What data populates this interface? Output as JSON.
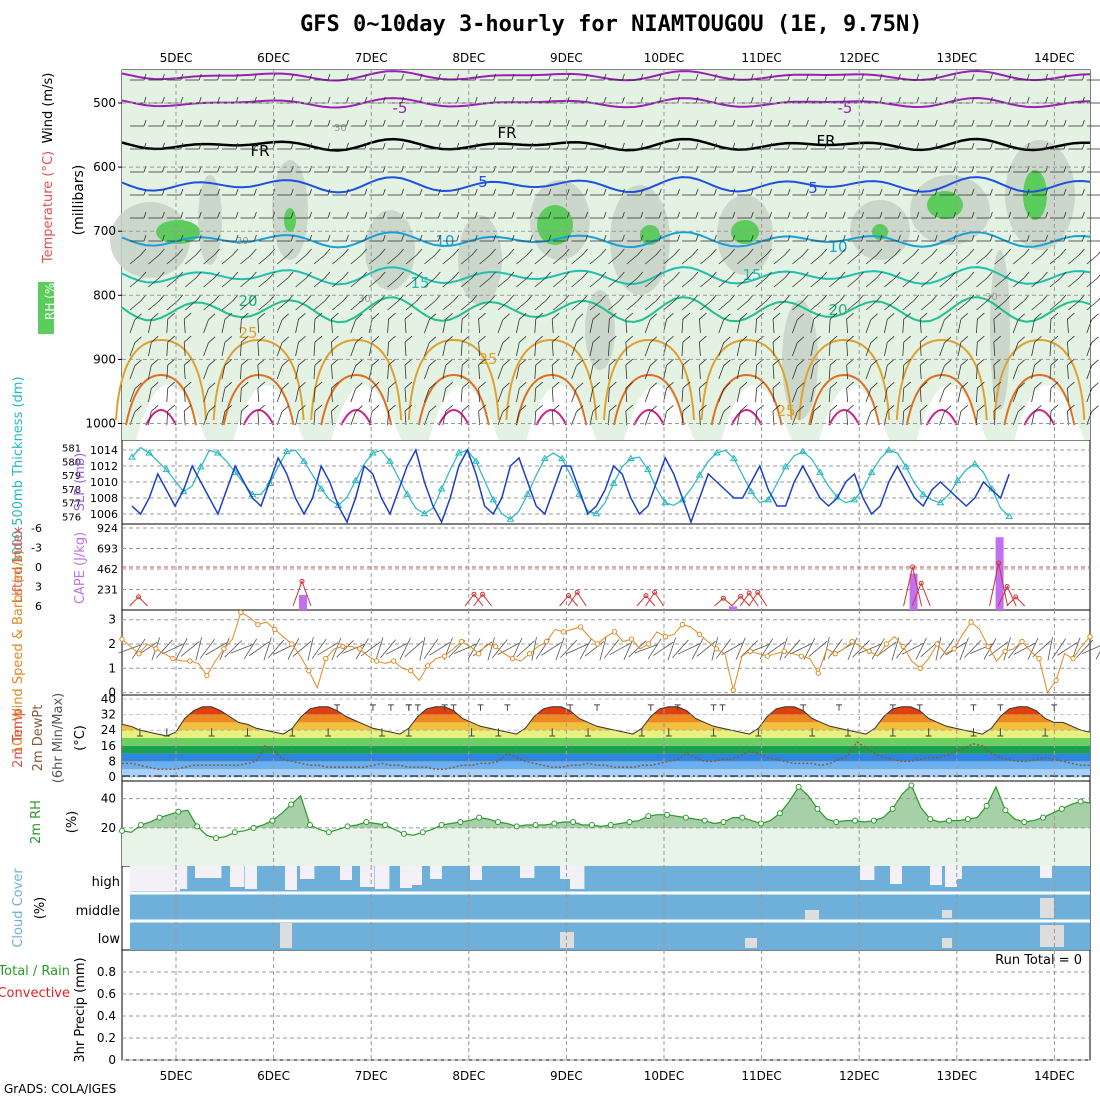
{
  "title": "GFS 0~10day 3-hourly for NIAMTOUGOU (1E, 9.75N)",
  "credit": "GrADS: COLA/IGES",
  "date_labels": [
    "5DEC",
    "6DEC",
    "7DEC",
    "8DEC",
    "9DEC",
    "10DEC",
    "11DEC",
    "12DEC",
    "13DEC",
    "14DEC"
  ],
  "colors": {
    "rh_green": "#5ccc5c",
    "rh_light": "#e4f2e4",
    "temp_purple": "#9a1fb5",
    "temp_blue": "#1d4fe0",
    "temp_cyan": "#1aa0d8",
    "temp_teal": "#20bfb0",
    "temp_orange": "#e0a030",
    "thickness": "#25b8c0",
    "slp": "#1c3fc8",
    "lifted_index": "#d23232",
    "cape": "#c070f0",
    "wind10m": "#e08a20",
    "rh2m": "#2a9a2a",
    "cloud": "#6fb0da",
    "precip_total": "#2a9a2a",
    "precip_conv": "#e02020"
  },
  "chart_data": [
    {
      "type": "heatmap",
      "name": "upper",
      "ylabel": "(millibars)",
      "labels": [
        "RH (%)",
        "Temperature (°C)",
        "Wind (m/s)"
      ],
      "yticks": [
        500,
        600,
        700,
        800,
        900,
        1000
      ],
      "contour_labels": [
        "-5",
        "-5",
        "FR",
        "FR",
        "FR",
        "5",
        "5",
        "10",
        "10",
        "15",
        "15",
        "20",
        "20",
        "25",
        "25",
        "25"
      ],
      "rh_labels": [
        "30",
        "30",
        "30",
        "30"
      ]
    },
    {
      "type": "line",
      "name": "thickness-slp",
      "ylabel_left": "1000-500mb Thickness (dm)",
      "ylabel_right": "SLP (mb)",
      "yticks_left": [
        576,
        577,
        578,
        579,
        580,
        581
      ],
      "yticks_right": [
        1006,
        1008,
        1010,
        1012,
        1014
      ],
      "ylim_left": [
        575.6,
        581.4
      ],
      "ylim_right": [
        1005,
        1015
      ],
      "thickness": [
        580.3,
        581,
        580.6,
        580,
        579.4,
        578.6,
        577.8,
        578.2,
        579.6,
        580.8,
        580.6,
        580,
        579.2,
        578.4,
        577.6,
        577.6,
        578.4,
        579.6,
        580.7,
        580.8,
        580,
        579,
        578,
        577.2,
        576.8,
        577.4,
        578.6,
        579.8,
        580.6,
        580.8,
        580,
        578.8,
        577.6,
        576.6,
        576.2,
        576.6,
        578,
        579.4,
        580.6,
        580.8,
        580,
        578.6,
        577.2,
        576.2,
        575.8,
        576.4,
        577.6,
        579,
        580.2,
        580.6,
        580.2,
        579,
        577.6,
        576.4,
        576.2,
        577,
        578.4,
        579.6,
        580.2,
        580.3,
        579.4,
        578,
        577,
        576.8,
        577.2,
        578,
        579,
        580,
        580.6,
        580.8,
        580.2,
        579,
        577.8,
        577,
        577.2,
        578.4,
        579.6,
        580.4,
        580.7,
        580.2,
        579.2,
        578.2,
        577.4,
        577,
        577.2,
        578,
        579.2,
        580.2,
        580.8,
        580.6,
        579.6,
        578.4,
        577.6,
        577.2,
        577,
        577.6,
        578.6,
        579.4,
        579.8,
        579.2,
        578,
        576.6,
        576
      ],
      "slp": [
        1007,
        1006,
        1008,
        1011,
        1009,
        1007,
        1009,
        1012,
        1010,
        1008,
        1006,
        1009,
        1012,
        1010,
        1008,
        1007,
        1010,
        1013,
        1011,
        1008,
        1006,
        1008,
        1012,
        1010,
        1007,
        1005,
        1008,
        1012,
        1011,
        1008,
        1006,
        1009,
        1012,
        1014,
        1010,
        1007,
        1005,
        1008,
        1012,
        1014,
        1011,
        1007,
        1006,
        1008,
        1012,
        1013,
        1010,
        1007,
        1006,
        1009,
        1012,
        1012,
        1009,
        1006,
        1007,
        1009,
        1012,
        1011,
        1008,
        1006,
        1007,
        1010,
        1013,
        1011,
        1008,
        1005,
        1008,
        1011,
        1010,
        1009,
        1008,
        1008,
        1010,
        1012,
        1009,
        1007,
        1007,
        1010,
        1012,
        1010,
        1008,
        1007,
        1008,
        1010,
        1011,
        1008,
        1006,
        1007,
        1010,
        1012,
        1010,
        1008,
        1007,
        1009,
        1010,
        1009,
        1008,
        1007,
        1008,
        1010,
        1009,
        1008,
        1011
      ]
    },
    {
      "type": "bar",
      "name": "lifted-cape",
      "ylabel_left": "Lifted Index",
      "ylabel_right": "CAPE (J/kg)",
      "yticks_left": [
        -6,
        -3,
        0,
        3,
        6
      ],
      "yticks_right": [
        231,
        462,
        693,
        924
      ],
      "ylim_cape": [
        0,
        924
      ],
      "cape_x": [
        20,
        70,
        91,
        101
      ],
      "cape_values": [
        170,
        40,
        410,
        820
      ],
      "lifted_index": [
        4.8,
        4.5,
        5.8,
        6,
        6,
        6,
        6,
        6,
        6,
        6,
        6,
        6,
        6,
        6,
        6,
        6,
        6,
        6,
        6,
        6,
        6,
        6,
        6,
        6,
        6,
        6,
        6,
        6,
        6,
        6,
        6,
        6,
        6,
        6,
        6,
        6,
        6,
        6,
        6,
        6,
        6,
        6,
        6,
        6,
        6,
        6,
        6,
        6,
        6,
        6,
        6,
        6,
        6,
        6,
        6,
        6,
        6,
        6,
        6,
        6,
        6,
        6,
        6,
        6,
        6,
        6,
        6,
        6,
        6,
        6,
        6,
        6,
        6,
        6,
        6,
        6,
        6,
        6,
        6,
        6,
        6,
        6,
        6,
        6,
        6,
        6,
        6,
        6,
        6,
        6,
        6,
        6,
        6,
        6,
        6,
        6,
        6,
        6,
        6,
        6,
        6,
        6,
        6,
        6
      ],
      "li_events": [
        {
          "x": 1,
          "v": 4.6
        },
        {
          "x": 20,
          "v": 2.2
        },
        {
          "x": 40,
          "v": 4.2
        },
        {
          "x": 41,
          "v": 4.2
        },
        {
          "x": 51,
          "v": 4.4
        },
        {
          "x": 52,
          "v": 3.9
        },
        {
          "x": 60,
          "v": 4.4
        },
        {
          "x": 61,
          "v": 3.9
        },
        {
          "x": 69,
          "v": 4.8
        },
        {
          "x": 71,
          "v": 4.5
        },
        {
          "x": 72,
          "v": 4.0
        },
        {
          "x": 73,
          "v": 3.9
        },
        {
          "x": 91,
          "v": 0.0
        },
        {
          "x": 92,
          "v": 2.5
        },
        {
          "x": 101,
          "v": -0.6
        },
        {
          "x": 102,
          "v": 3.0
        },
        {
          "x": 103,
          "v": 4.6
        }
      ]
    },
    {
      "type": "line",
      "name": "wind10m",
      "ylabel": "10m Wind Speed & Barbs (m/s)",
      "yticks": [
        0,
        1,
        2,
        3
      ],
      "ylim": [
        -0.1,
        3.4
      ],
      "values": [
        2.2,
        1.9,
        1.6,
        2.0,
        1.8,
        1.6,
        1.4,
        1.3,
        1.3,
        1.2,
        0.7,
        1.3,
        1.8,
        2.2,
        3.3,
        3.1,
        2.8,
        2.9,
        2.6,
        2.3,
        2.0,
        1.5,
        0.9,
        0.2,
        1.4,
        1.8,
        1.9,
        1.9,
        1.8,
        1.5,
        1.3,
        1.2,
        1.3,
        1.0,
        0.9,
        0.5,
        1.1,
        1.4,
        1.5,
        1.8,
        2.1,
        1.9,
        1.6,
        2.0,
        1.9,
        1.6,
        1.4,
        1.3,
        1.6,
        1.9,
        2.1,
        2.6,
        2.5,
        2.6,
        2.7,
        2.3,
        2.0,
        2.3,
        2.5,
        2.1,
        2.2,
        1.8,
        2.0,
        2.5,
        2.3,
        2.4,
        2.8,
        2.7,
        2.4,
        2.1,
        1.8,
        1.6,
        0.1,
        1.5,
        1.7,
        1.6,
        1.5,
        1.6,
        1.7,
        1.6,
        1.5,
        1.4,
        0.8,
        1.8,
        1.6,
        1.8,
        2.1,
        1.9,
        1.7,
        1.5,
        2.0,
        2.3,
        1.9,
        1.3,
        1.0,
        1.4,
        2.0,
        1.6,
        1.8,
        2.4,
        2.9,
        2.6,
        1.9,
        1.3,
        1.7,
        1.8,
        2.1,
        1.7,
        1.4,
        0.0,
        0.5,
        1.6,
        1.4,
        1.9,
        2.3
      ]
    },
    {
      "type": "area",
      "name": "temp2m",
      "ylabel": "2m Temp 2m DewPt (6hr Min/Max) (°C)",
      "yticks": [
        0,
        8,
        16,
        24,
        32,
        40
      ],
      "ylim": [
        0,
        40
      ],
      "bands": [
        {
          "from": 0,
          "to": 4,
          "color": "#a8d0f8"
        },
        {
          "from": 4,
          "to": 8,
          "color": "#6ab0f0"
        },
        {
          "from": 8,
          "to": 12,
          "color": "#2f84e0"
        },
        {
          "from": 12,
          "to": 16,
          "color": "#1aa050"
        },
        {
          "from": 16,
          "to": 20,
          "color": "#6cd060"
        },
        {
          "from": 20,
          "to": 24,
          "color": "#e8f080"
        },
        {
          "from": 24,
          "to": 28,
          "color": "#f0c040"
        },
        {
          "from": 28,
          "to": 32,
          "color": "#f08820"
        },
        {
          "from": 32,
          "to": 36,
          "color": "#e04010"
        },
        {
          "from": 36,
          "to": 40,
          "color": "#a01010"
        }
      ],
      "temp": [
        27,
        26,
        24,
        23,
        22,
        21,
        23,
        30,
        34,
        36,
        36,
        34,
        31,
        28,
        27,
        25,
        24,
        23,
        22,
        25,
        31,
        35,
        36,
        36,
        34,
        31,
        29,
        27,
        25,
        24,
        23,
        22,
        25,
        31,
        35,
        36,
        36,
        34,
        30,
        28,
        26,
        25,
        24,
        23,
        22,
        25,
        31,
        35,
        36,
        36,
        34,
        30,
        28,
        26,
        25,
        24,
        23,
        22,
        25,
        31,
        35,
        36,
        36,
        34,
        30,
        28,
        26,
        25,
        24,
        23,
        22,
        25,
        31,
        35,
        36,
        36,
        34,
        30,
        28,
        26,
        25,
        24,
        23,
        22,
        25,
        31,
        35,
        36,
        36,
        34,
        30,
        28,
        26,
        25,
        24,
        23,
        22,
        25,
        31,
        35,
        36,
        36,
        34,
        30,
        28,
        28,
        26,
        24,
        23
      ],
      "dewpt": [
        7,
        7,
        6,
        5,
        4,
        4,
        4,
        5,
        6,
        6,
        6,
        6,
        6,
        6,
        7,
        8,
        16,
        13,
        9,
        8,
        7,
        6,
        6,
        5,
        5,
        5,
        5,
        5,
        6,
        7,
        6,
        6,
        5,
        5,
        5,
        4,
        4,
        5,
        6,
        6,
        7,
        7,
        8,
        12,
        10,
        8,
        7,
        6,
        5,
        5,
        6,
        6,
        7,
        6,
        6,
        5,
        5,
        5,
        6,
        6,
        7,
        8,
        9,
        12,
        10,
        8,
        8,
        9,
        9,
        11,
        13,
        12,
        10,
        9,
        8,
        7,
        7,
        7,
        6,
        7,
        9,
        11,
        18,
        15,
        12,
        10,
        9,
        8,
        8,
        9,
        10,
        10,
        11,
        13,
        15,
        17,
        16,
        12,
        10,
        9,
        8,
        8,
        9,
        10,
        9,
        8,
        7,
        6,
        6
      ],
      "max_marks": [
        30,
        33,
        24,
        32,
        28,
        36,
        37,
        32,
        40,
        43,
        50,
        53,
        59,
        62,
        66,
        67,
        76,
        80,
        86,
        89,
        95,
        98,
        104
      ],
      "min_marks": [
        2,
        5,
        10,
        14,
        19,
        23,
        29,
        32,
        39,
        42,
        48,
        52,
        58,
        61,
        66,
        71,
        77,
        81,
        86,
        90,
        95,
        98,
        103
      ]
    },
    {
      "type": "area",
      "name": "rh2m",
      "ylabel": "2m RH (%)",
      "yticks": [
        20,
        40
      ],
      "ylim": [
        -6,
        52
      ],
      "values": [
        18,
        17,
        22,
        24,
        27,
        29,
        31,
        32,
        21,
        15,
        13,
        14,
        17,
        18,
        20,
        22,
        25,
        30,
        36,
        42,
        22,
        19,
        17,
        19,
        21,
        22,
        24,
        23,
        22,
        19,
        16,
        15,
        17,
        19,
        22,
        23,
        24,
        25,
        27,
        26,
        24,
        23,
        21,
        22,
        22,
        22,
        23,
        24,
        24,
        22,
        22,
        21,
        22,
        23,
        24,
        25,
        28,
        29,
        29,
        28,
        27,
        26,
        25,
        23,
        24,
        27,
        27,
        25,
        23,
        25,
        30,
        38,
        48,
        42,
        33,
        26,
        24,
        25,
        25,
        24,
        25,
        27,
        33,
        43,
        49,
        34,
        26,
        24,
        25,
        25,
        26,
        27,
        35,
        48,
        32,
        26,
        24,
        25,
        27,
        30,
        33,
        36,
        38,
        37
      ]
    },
    {
      "type": "bar",
      "name": "cloud",
      "ylabel": "Cloud Cover (%)",
      "levels": [
        "high",
        "middle",
        "low"
      ]
    },
    {
      "type": "bar",
      "name": "precip",
      "ylabel": "3hr Precip (mm)",
      "labels_left": [
        "Total / Rain",
        "Convective"
      ],
      "yticks": [
        0,
        0.2,
        0.4,
        0.6,
        0.8
      ],
      "ylim": [
        0,
        1.0
      ],
      "run_total": "Run Total = 0",
      "values": []
    }
  ]
}
